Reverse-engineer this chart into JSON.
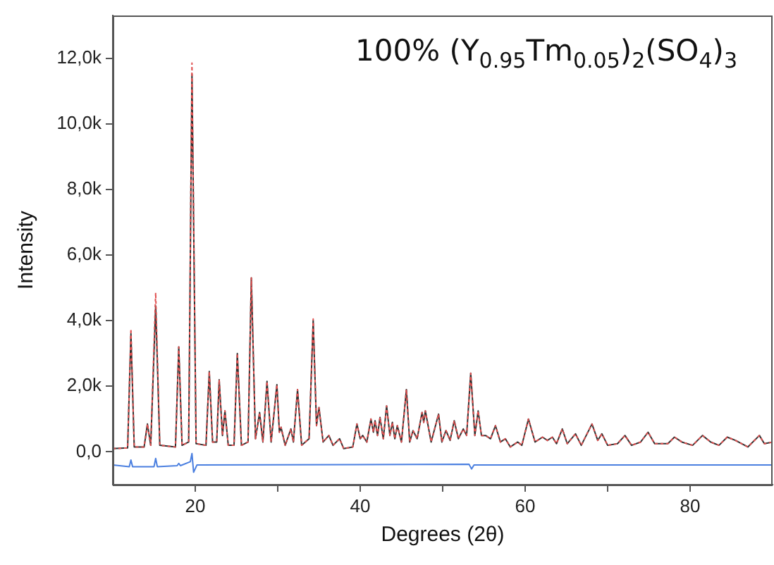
{
  "chart_data": {
    "type": "line",
    "title": "100% (Y$_{0.95}$Tm$_{0.05}$)$_{2}$(SO$_{4}$)$_{3}$",
    "xlabel": "Degrees (2θ)",
    "ylabel": "Intensity",
    "x": [
      10,
      11.8,
      12.2,
      12.6,
      13.8,
      14.2,
      14.6,
      15.2,
      15.7,
      17.6,
      18.0,
      18.4,
      19.2,
      19.6,
      20.1,
      21.3,
      21.7,
      22.1,
      22.6,
      22.9,
      23.3,
      23.6,
      24.0,
      24.7,
      25.1,
      25.6,
      26.4,
      26.8,
      27.3,
      27.8,
      28.2,
      28.7,
      29.2,
      29.9,
      30.2,
      30.4,
      30.9,
      31.6,
      31.9,
      32.4,
      32.9,
      33.8,
      34.3,
      34.7,
      35.0,
      35.5,
      36.2,
      36.7,
      37.5,
      38.0,
      39.1,
      39.6,
      40.0,
      40.3,
      40.8,
      41.3,
      41.6,
      41.8,
      42.1,
      42.4,
      42.8,
      43.2,
      43.6,
      43.9,
      44.2,
      44.5,
      45.0,
      45.6,
      46.0,
      46.4,
      46.9,
      47.5,
      47.7,
      47.9,
      48.6,
      49.5,
      49.9,
      50.4,
      50.9,
      51.4,
      51.9,
      52.5,
      52.9,
      53.4,
      53.9,
      54.3,
      54.7,
      55.2,
      55.8,
      56.4,
      57.0,
      57.6,
      58.2,
      59.1,
      59.6,
      60.4,
      61.2,
      62.1,
      62.7,
      63.3,
      63.8,
      64.5,
      65.1,
      66.1,
      66.8,
      68.1,
      68.8,
      69.3,
      70.0,
      71.2,
      72.1,
      72.9,
      74.0,
      74.9,
      75.7,
      77.3,
      78.1,
      79.0,
      80.3,
      81.5,
      82.5,
      83.5,
      84.5,
      85.5,
      87.0,
      88.4,
      89.0,
      90
    ],
    "series": [
      {
        "color": "#333333",
        "line_style": "solid",
        "values": [
          100,
          120,
          3600,
          150,
          150,
          850,
          200,
          4450,
          200,
          150,
          3200,
          200,
          300,
          11500,
          250,
          200,
          2450,
          300,
          300,
          2200,
          500,
          1250,
          200,
          200,
          3000,
          200,
          300,
          5300,
          400,
          1200,
          300,
          2150,
          300,
          2050,
          600,
          750,
          200,
          700,
          300,
          1900,
          200,
          400,
          4000,
          800,
          1350,
          300,
          500,
          200,
          400,
          100,
          150,
          850,
          400,
          500,
          300,
          1000,
          600,
          950,
          500,
          1050,
          400,
          1400,
          500,
          900,
          400,
          800,
          300,
          1900,
          300,
          650,
          400,
          1200,
          900,
          1250,
          300,
          1150,
          300,
          650,
          350,
          950,
          400,
          700,
          500,
          2400,
          500,
          1250,
          500,
          500,
          400,
          800,
          300,
          400,
          150,
          300,
          200,
          1000,
          300,
          450,
          350,
          450,
          250,
          700,
          250,
          550,
          200,
          850,
          350,
          550,
          200,
          250,
          500,
          200,
          300,
          600,
          250,
          250,
          450,
          300,
          200,
          500,
          300,
          200,
          450,
          350,
          150,
          500,
          250,
          300
        ]
      },
      {
        "color": "#e05050",
        "line_style": "dotted",
        "values": [
          100,
          120,
          3750,
          150,
          150,
          850,
          200,
          4850,
          200,
          150,
          3200,
          200,
          300,
          11850,
          250,
          200,
          2450,
          300,
          300,
          2200,
          500,
          1250,
          200,
          200,
          3000,
          200,
          300,
          5300,
          400,
          1200,
          300,
          2150,
          300,
          2050,
          600,
          750,
          200,
          700,
          300,
          1900,
          200,
          400,
          4050,
          800,
          1350,
          300,
          500,
          200,
          400,
          100,
          150,
          850,
          400,
          500,
          300,
          1000,
          600,
          950,
          500,
          1050,
          400,
          1400,
          500,
          900,
          400,
          800,
          300,
          1900,
          300,
          650,
          400,
          1200,
          900,
          1250,
          300,
          1150,
          300,
          650,
          350,
          950,
          400,
          700,
          500,
          2400,
          500,
          1250,
          500,
          500,
          400,
          800,
          300,
          400,
          150,
          300,
          200,
          1000,
          300,
          450,
          350,
          450,
          250,
          700,
          250,
          550,
          200,
          850,
          350,
          550,
          200,
          250,
          500,
          200,
          300,
          600,
          250,
          250,
          450,
          300,
          200,
          500,
          300,
          200,
          450,
          350,
          150,
          500,
          250,
          300
        ]
      },
      {
        "color": "#4a7fe0",
        "line_style": "solid",
        "x": [
          10,
          12.0,
          12.2,
          12.4,
          15.0,
          15.2,
          15.4,
          17.8,
          18.0,
          18.2,
          19.4,
          19.6,
          19.8,
          20.2,
          53.2,
          53.5,
          53.8,
          90
        ],
        "values": [
          -400,
          -450,
          -250,
          -450,
          -450,
          -200,
          -450,
          -420,
          -350,
          -420,
          -300,
          -50,
          -620,
          -400,
          -380,
          -520,
          -400,
          -400
        ]
      }
    ],
    "xlim": [
      10,
      90
    ],
    "xticks": [
      20,
      {
        "value": 30,
        "label": null
      },
      40,
      {
        "value": 50,
        "label": null
      },
      60,
      {
        "value": 70,
        "label": null
      },
      80
    ],
    "ylim": [
      -1000,
      13300
    ],
    "yticks": [
      {
        "value": 0,
        "label": "0,0"
      },
      {
        "value": 2000,
        "label": "2,0k"
      },
      {
        "value": 4000,
        "label": "4,0k"
      },
      {
        "value": 6000,
        "label": "6,0k"
      },
      {
        "value": 8000,
        "label": "8,0k"
      },
      {
        "value": 10000,
        "label": "10,0k"
      },
      {
        "value": 12000,
        "label": "12,0k"
      }
    ]
  }
}
